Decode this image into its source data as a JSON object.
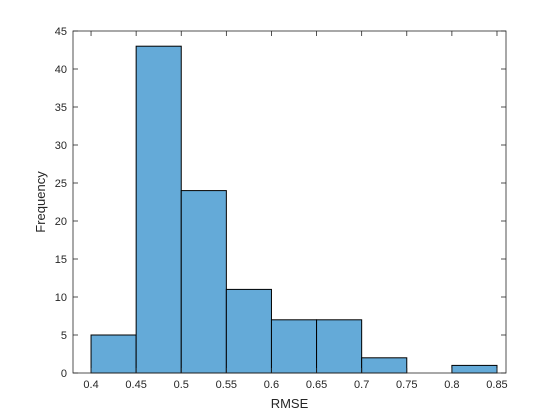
{
  "chart_data": {
    "type": "bar",
    "subtype": "histogram",
    "title": "",
    "xlabel": "RMSE",
    "ylabel": "Frequency",
    "bin_edges": [
      0.4,
      0.45,
      0.5,
      0.55,
      0.6,
      0.65,
      0.7,
      0.75,
      0.8,
      0.85
    ],
    "values": [
      5,
      43,
      24,
      11,
      7,
      7,
      2,
      0,
      1
    ],
    "xlim": [
      0.38,
      0.86
    ],
    "ylim": [
      0,
      45
    ],
    "x_ticks": [
      0.4,
      0.45,
      0.5,
      0.55,
      0.6,
      0.65,
      0.7,
      0.75,
      0.8,
      0.85
    ],
    "x_tick_labels": [
      "0.4",
      "0.45",
      "0.5",
      "0.55",
      "0.6",
      "0.65",
      "0.7",
      "0.75",
      "0.8",
      "0.85"
    ],
    "y_ticks": [
      0,
      5,
      10,
      15,
      20,
      25,
      30,
      35,
      40,
      45
    ],
    "y_tick_labels": [
      "0",
      "5",
      "10",
      "15",
      "20",
      "25",
      "30",
      "35",
      "40",
      "45"
    ],
    "grid": false,
    "legend": "none",
    "colors": {
      "bar_fill": "#64aad8",
      "bar_edge": "#000000",
      "axis": "#262626"
    }
  }
}
